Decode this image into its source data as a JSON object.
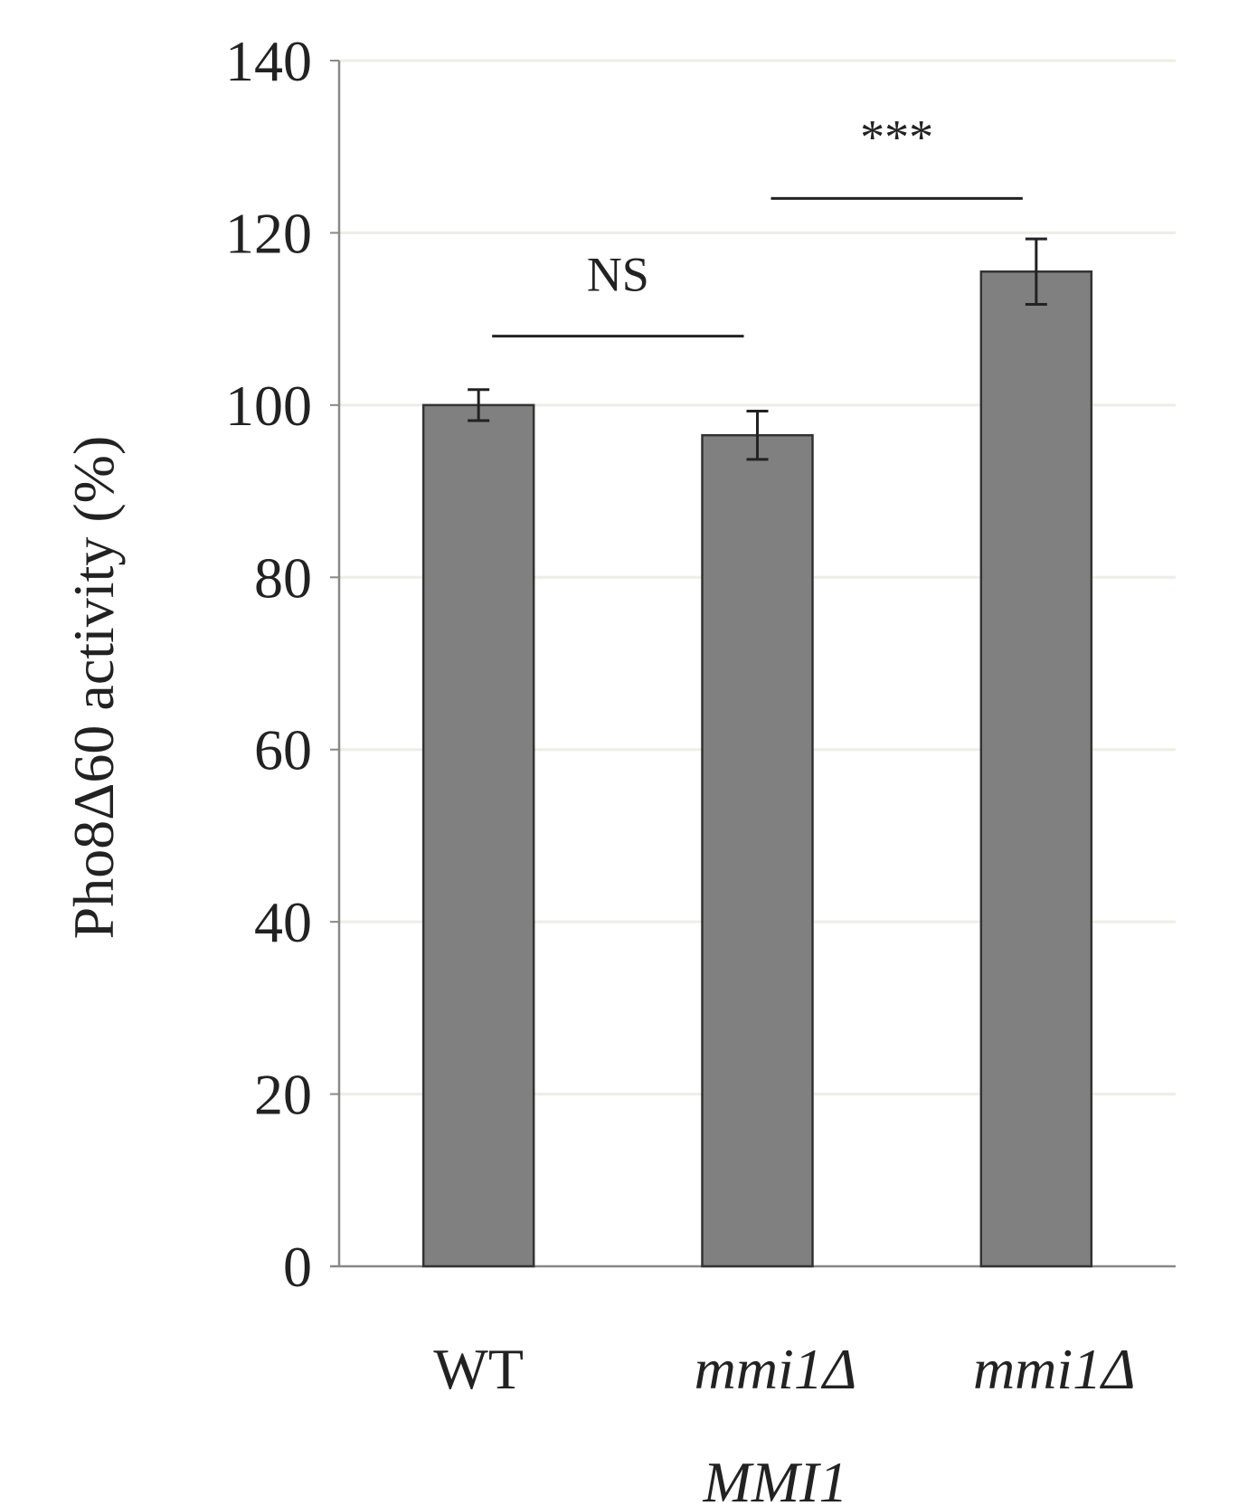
{
  "chart_data": {
    "type": "bar",
    "title": "",
    "xlabel": "",
    "ylabel": "Pho8Δ60 activity (%)",
    "ylim": [
      0,
      140
    ],
    "yticks": [
      0,
      20,
      40,
      60,
      80,
      100,
      120,
      140
    ],
    "grid": true,
    "categories": [
      {
        "lines": [
          "WT"
        ],
        "italic": false
      },
      {
        "lines": [
          "mmi1Δ",
          "MMI1"
        ],
        "italic": true
      },
      {
        "lines": [
          "mmi1Δ"
        ],
        "italic": true
      }
    ],
    "values": [
      100,
      96.5,
      115.5
    ],
    "errors": [
      1.8,
      2.8,
      3.8
    ],
    "significance": [
      {
        "from": 0,
        "to": 1,
        "label": "NS",
        "y": 108
      },
      {
        "from": 1,
        "to": 2,
        "label": "***",
        "y": 124
      }
    ],
    "colors": {
      "bar": "#808080",
      "bar_edge": "#333333",
      "axis": "#888888",
      "grid": "#ecefe6",
      "error": "#222222",
      "text": "#222222"
    }
  }
}
